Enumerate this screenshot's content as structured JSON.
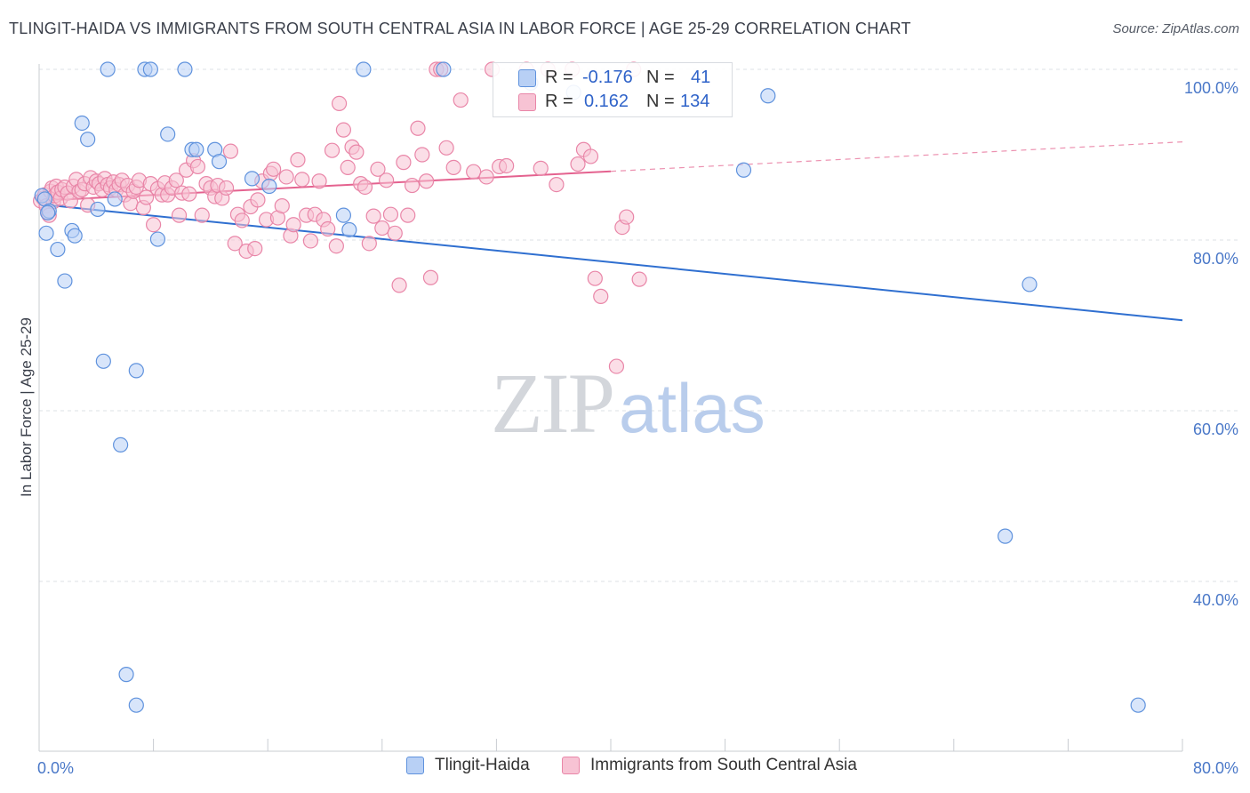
{
  "header": {
    "title": "TLINGIT-HAIDA VS IMMIGRANTS FROM SOUTH CENTRAL ASIA IN LABOR FORCE | AGE 25-29 CORRELATION CHART",
    "source": "Source: ZipAtlas.com"
  },
  "watermark": {
    "zip": "ZIP",
    "atlas": "atlas"
  },
  "legend": {
    "series1": {
      "r_label": "R =",
      "r_value": "-0.176",
      "n_label": "N =",
      "n_value": "41"
    },
    "series2": {
      "r_label": "R =",
      "r_value": "0.162",
      "n_label": "N =",
      "n_value": "134"
    }
  },
  "bottom_legend": {
    "series1": "Tlingit-Haida",
    "series2": "Immigrants from South Central Asia"
  },
  "colors": {
    "blue_fill": "#b8d0f5",
    "blue_stroke": "#5f92dd",
    "blue_line": "#2f6fd0",
    "pink_fill": "#f7c3d4",
    "pink_stroke": "#e986a8",
    "pink_line": "#e4628f",
    "grid": "#dde0e5",
    "tick_text": "#4a78c8"
  },
  "chart_data": {
    "type": "scatter",
    "title": "TLINGIT-HAIDA VS IMMIGRANTS FROM SOUTH CENTRAL ASIA IN LABOR FORCE | AGE 25-29 CORRELATION CHART",
    "xlabel": "",
    "ylabel": "In Labor Force | Age 25-29",
    "xlim": [
      0,
      80
    ],
    "ylim": [
      20,
      101
    ],
    "x_ticks_labeled": [
      "0.0%",
      "80.0%"
    ],
    "y_ticks": [
      100,
      80,
      60,
      40
    ],
    "y_tick_labels": [
      "100.0%",
      "80.0%",
      "60.0%",
      "40.0%"
    ],
    "grid": true,
    "legend_position": "top-center",
    "series": [
      {
        "name": "Tlingit-Haida",
        "color": "#5f92dd",
        "R": -0.176,
        "N": 41,
        "trend": {
          "x": [
            0,
            80
          ],
          "y": [
            84.2,
            70.6
          ],
          "dashed_from": null
        },
        "points": [
          [
            0.2,
            85.2
          ],
          [
            0.4,
            84.8
          ],
          [
            0.7,
            83.4
          ],
          [
            0.5,
            80.8
          ],
          [
            1.3,
            78.9
          ],
          [
            1.8,
            75.2
          ],
          [
            2.3,
            81.1
          ],
          [
            2.5,
            80.5
          ],
          [
            3.0,
            93.7
          ],
          [
            3.4,
            91.8
          ],
          [
            4.1,
            83.6
          ],
          [
            4.5,
            65.8
          ],
          [
            4.8,
            100
          ],
          [
            5.3,
            84.8
          ],
          [
            5.7,
            56.0
          ],
          [
            6.1,
            29.1
          ],
          [
            6.8,
            25.5
          ],
          [
            6.8,
            64.7
          ],
          [
            7.4,
            100
          ],
          [
            7.8,
            100
          ],
          [
            8.3,
            80.1
          ],
          [
            9.0,
            92.4
          ],
          [
            10.2,
            100
          ],
          [
            10.7,
            90.6
          ],
          [
            11.0,
            90.6
          ],
          [
            12.3,
            90.6
          ],
          [
            12.6,
            89.2
          ],
          [
            14.9,
            87.2
          ],
          [
            16.1,
            86.3
          ],
          [
            21.3,
            82.9
          ],
          [
            21.7,
            81.2
          ],
          [
            22.7,
            100
          ],
          [
            28.3,
            100
          ],
          [
            34.4,
            98.4
          ],
          [
            37.4,
            97.3
          ],
          [
            49.3,
            88.2
          ],
          [
            51.0,
            96.9
          ],
          [
            67.6,
            45.3
          ],
          [
            69.3,
            74.8
          ],
          [
            76.9,
            25.5
          ],
          [
            0.6,
            83.2
          ]
        ]
      },
      {
        "name": "Immigrants from South Central Asia",
        "color": "#e986a8",
        "R": 0.162,
        "N": 134,
        "trend": {
          "x": [
            0,
            80
          ],
          "y": [
            84.6,
            91.5
          ],
          "dashed_from": 40
        },
        "points": [
          [
            0.1,
            84.6
          ],
          [
            0.3,
            84.9
          ],
          [
            0.4,
            85.3
          ],
          [
            0.5,
            84.0
          ],
          [
            0.6,
            83.2
          ],
          [
            0.7,
            82.9
          ],
          [
            0.8,
            85.7
          ],
          [
            0.9,
            86.1
          ],
          [
            1.0,
            84.5
          ],
          [
            1.1,
            85.2
          ],
          [
            1.2,
            86.3
          ],
          [
            1.3,
            85.6
          ],
          [
            1.5,
            84.9
          ],
          [
            1.6,
            85.9
          ],
          [
            1.8,
            86.2
          ],
          [
            2.0,
            85.5
          ],
          [
            2.2,
            84.6
          ],
          [
            2.4,
            86.3
          ],
          [
            2.6,
            87.1
          ],
          [
            2.8,
            85.7
          ],
          [
            3.0,
            85.9
          ],
          [
            3.2,
            86.6
          ],
          [
            3.4,
            84.1
          ],
          [
            3.6,
            87.3
          ],
          [
            3.8,
            86.2
          ],
          [
            4.0,
            86.9
          ],
          [
            4.2,
            86.6
          ],
          [
            4.4,
            85.9
          ],
          [
            4.6,
            87.2
          ],
          [
            4.8,
            86.5
          ],
          [
            5.0,
            86.1
          ],
          [
            5.2,
            86.8
          ],
          [
            5.4,
            85.9
          ],
          [
            5.6,
            86.5
          ],
          [
            5.8,
            87.0
          ],
          [
            6.0,
            85.3
          ],
          [
            6.2,
            86.4
          ],
          [
            6.4,
            84.3
          ],
          [
            6.6,
            85.7
          ],
          [
            6.8,
            86.2
          ],
          [
            7.0,
            87.0
          ],
          [
            7.3,
            83.8
          ],
          [
            7.5,
            85.0
          ],
          [
            7.8,
            86.6
          ],
          [
            8.0,
            81.8
          ],
          [
            8.3,
            86.0
          ],
          [
            8.6,
            85.3
          ],
          [
            8.8,
            86.7
          ],
          [
            9.0,
            85.3
          ],
          [
            9.3,
            86.1
          ],
          [
            9.6,
            87.0
          ],
          [
            9.8,
            82.9
          ],
          [
            10.0,
            85.5
          ],
          [
            10.3,
            88.2
          ],
          [
            10.5,
            85.4
          ],
          [
            10.8,
            89.3
          ],
          [
            11.1,
            88.6
          ],
          [
            11.4,
            82.9
          ],
          [
            11.7,
            86.6
          ],
          [
            12.0,
            86.1
          ],
          [
            12.3,
            85.1
          ],
          [
            12.5,
            86.4
          ],
          [
            12.8,
            84.9
          ],
          [
            13.1,
            86.1
          ],
          [
            13.4,
            90.4
          ],
          [
            13.7,
            79.6
          ],
          [
            13.9,
            83.0
          ],
          [
            14.2,
            82.3
          ],
          [
            14.5,
            78.7
          ],
          [
            14.8,
            83.9
          ],
          [
            15.1,
            79.0
          ],
          [
            15.3,
            84.7
          ],
          [
            15.6,
            86.9
          ],
          [
            15.9,
            82.4
          ],
          [
            16.2,
            87.8
          ],
          [
            16.4,
            88.3
          ],
          [
            16.7,
            82.6
          ],
          [
            17.0,
            84.0
          ],
          [
            17.3,
            87.4
          ],
          [
            17.6,
            80.5
          ],
          [
            17.8,
            81.8
          ],
          [
            18.1,
            89.4
          ],
          [
            18.4,
            87.1
          ],
          [
            18.7,
            82.9
          ],
          [
            19.0,
            79.9
          ],
          [
            19.3,
            83.0
          ],
          [
            19.6,
            86.9
          ],
          [
            19.9,
            82.4
          ],
          [
            20.2,
            81.3
          ],
          [
            20.5,
            90.5
          ],
          [
            20.8,
            79.3
          ],
          [
            21.0,
            96.0
          ],
          [
            21.3,
            92.9
          ],
          [
            21.6,
            88.5
          ],
          [
            21.9,
            90.9
          ],
          [
            22.2,
            90.3
          ],
          [
            22.5,
            86.6
          ],
          [
            22.8,
            86.2
          ],
          [
            23.1,
            79.6
          ],
          [
            23.4,
            82.8
          ],
          [
            23.7,
            88.3
          ],
          [
            24.0,
            81.4
          ],
          [
            24.3,
            87.0
          ],
          [
            24.6,
            83.0
          ],
          [
            24.9,
            80.8
          ],
          [
            25.2,
            74.7
          ],
          [
            25.5,
            89.1
          ],
          [
            25.8,
            82.9
          ],
          [
            26.1,
            86.4
          ],
          [
            26.5,
            93.1
          ],
          [
            26.8,
            90.0
          ],
          [
            27.1,
            86.9
          ],
          [
            27.4,
            75.6
          ],
          [
            27.8,
            100
          ],
          [
            28.1,
            100
          ],
          [
            28.5,
            90.8
          ],
          [
            29.0,
            88.5
          ],
          [
            29.5,
            96.4
          ],
          [
            30.4,
            88.0
          ],
          [
            31.3,
            87.4
          ],
          [
            31.7,
            100
          ],
          [
            32.2,
            88.6
          ],
          [
            32.7,
            88.7
          ],
          [
            34.1,
            100
          ],
          [
            35.1,
            88.4
          ],
          [
            35.6,
            100
          ],
          [
            36.2,
            86.5
          ],
          [
            37.3,
            100
          ],
          [
            37.7,
            88.9
          ],
          [
            38.1,
            90.6
          ],
          [
            38.6,
            89.8
          ],
          [
            38.9,
            75.5
          ],
          [
            39.3,
            73.4
          ],
          [
            40.4,
            65.2
          ],
          [
            40.8,
            81.5
          ],
          [
            41.1,
            82.7
          ],
          [
            41.6,
            100
          ],
          [
            42.0,
            75.4
          ]
        ]
      }
    ]
  }
}
